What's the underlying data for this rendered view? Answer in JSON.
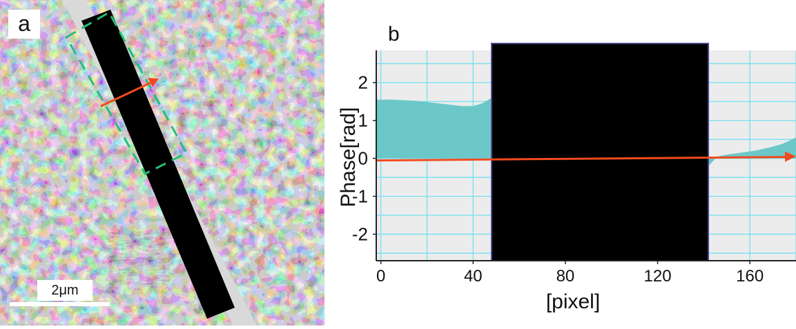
{
  "panel_a": {
    "label": "a",
    "scale_bar_label": "2μm"
  },
  "panel_b": {
    "label": "b"
  },
  "chart_data": {
    "type": "area",
    "ylabel": "Phase[rad]",
    "xlabel": "[pixel]",
    "xlim": [
      -2,
      180
    ],
    "ylim": [
      -2.7,
      2.85
    ],
    "x_ticks": [
      0,
      40,
      80,
      120,
      160
    ],
    "y_ticks": [
      2,
      1,
      0,
      -1,
      -2
    ],
    "x_tick_labels": [
      "0",
      "40",
      "80",
      "120",
      "160"
    ],
    "y_tick_labels": [
      "2",
      "1",
      "0",
      "-1",
      "-2"
    ],
    "grid": true,
    "masked_region": [
      48,
      142
    ],
    "series": [
      {
        "color": "#6cc8c8",
        "segments": [
          {
            "x": [
              -2,
              5,
              15,
              25,
              35,
              40,
              44,
              48
            ],
            "y": [
              1.55,
              1.55,
              1.52,
              1.45,
              1.38,
              1.38,
              1.45,
              1.6
            ]
          },
          {
            "x": [
              142,
              146,
              150,
              156,
              162,
              168,
              174,
              180
            ],
            "y": [
              -0.2,
              0.05,
              0.1,
              0.15,
              0.2,
              0.28,
              0.38,
              0.55
            ]
          }
        ]
      }
    ],
    "reference_line_y": 0,
    "colors": {
      "fill": "#6cc8c8",
      "grid": "#66e0f0",
      "background": "#ececec",
      "arrow": "#f24a1e",
      "mask": "#000000"
    }
  }
}
